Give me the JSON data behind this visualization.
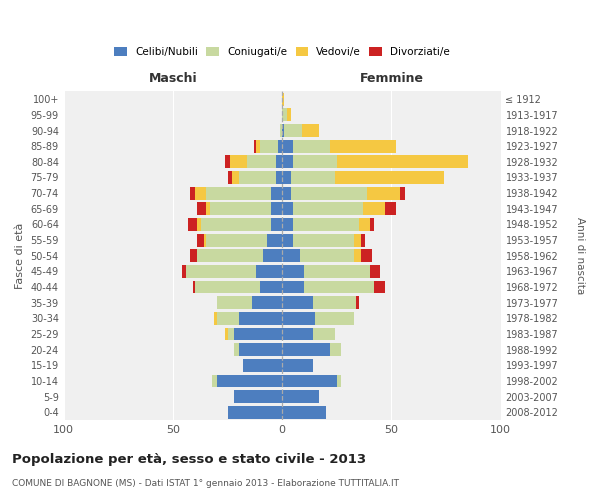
{
  "age_groups": [
    "0-4",
    "5-9",
    "10-14",
    "15-19",
    "20-24",
    "25-29",
    "30-34",
    "35-39",
    "40-44",
    "45-49",
    "50-54",
    "55-59",
    "60-64",
    "65-69",
    "70-74",
    "75-79",
    "80-84",
    "85-89",
    "90-94",
    "95-99",
    "100+"
  ],
  "birth_years": [
    "2008-2012",
    "2003-2007",
    "1998-2002",
    "1993-1997",
    "1988-1992",
    "1983-1987",
    "1978-1982",
    "1973-1977",
    "1968-1972",
    "1963-1967",
    "1958-1962",
    "1953-1957",
    "1948-1952",
    "1943-1947",
    "1938-1942",
    "1933-1937",
    "1928-1932",
    "1923-1927",
    "1918-1922",
    "1913-1917",
    "≤ 1912"
  ],
  "colors": {
    "celibi": "#4D7EBF",
    "coniugati": "#C8D9A0",
    "vedovi": "#F5C842",
    "divorziati": "#CC2222"
  },
  "maschi": {
    "celibi": [
      25,
      22,
      30,
      18,
      20,
      22,
      20,
      14,
      10,
      12,
      9,
      7,
      5,
      5,
      5,
      3,
      3,
      2,
      0,
      0,
      0
    ],
    "coniugati": [
      0,
      0,
      2,
      0,
      2,
      3,
      10,
      16,
      30,
      32,
      30,
      28,
      32,
      28,
      30,
      17,
      13,
      8,
      1,
      0,
      0
    ],
    "vedovi": [
      0,
      0,
      0,
      0,
      0,
      1,
      1,
      0,
      0,
      0,
      0,
      1,
      2,
      2,
      5,
      3,
      8,
      2,
      0,
      0,
      0
    ],
    "divorziati": [
      0,
      0,
      0,
      0,
      0,
      0,
      0,
      0,
      1,
      2,
      3,
      3,
      4,
      4,
      2,
      2,
      2,
      1,
      0,
      0,
      0
    ]
  },
  "femmine": {
    "celibi": [
      20,
      17,
      25,
      14,
      22,
      14,
      15,
      14,
      10,
      10,
      8,
      5,
      5,
      5,
      4,
      4,
      5,
      5,
      1,
      0,
      0
    ],
    "coniugati": [
      0,
      0,
      2,
      0,
      5,
      10,
      18,
      20,
      32,
      30,
      25,
      28,
      30,
      32,
      35,
      20,
      20,
      17,
      8,
      2,
      0
    ],
    "vedovi": [
      0,
      0,
      0,
      0,
      0,
      0,
      0,
      0,
      0,
      0,
      3,
      3,
      5,
      10,
      15,
      50,
      60,
      30,
      8,
      2,
      1
    ],
    "divorziati": [
      0,
      0,
      0,
      0,
      0,
      0,
      0,
      1,
      5,
      5,
      5,
      2,
      2,
      5,
      2,
      0,
      0,
      0,
      0,
      0,
      0
    ]
  },
  "xlim": 100,
  "title": "Popolazione per età, sesso e stato civile - 2013",
  "subtitle": "COMUNE DI BAGNONE (MS) - Dati ISTAT 1° gennaio 2013 - Elaborazione TUTTITALIA.IT",
  "ylabel_left": "Fasce di età",
  "ylabel_right": "Anni di nascita",
  "xlabel_left": "Maschi",
  "xlabel_right": "Femmine"
}
